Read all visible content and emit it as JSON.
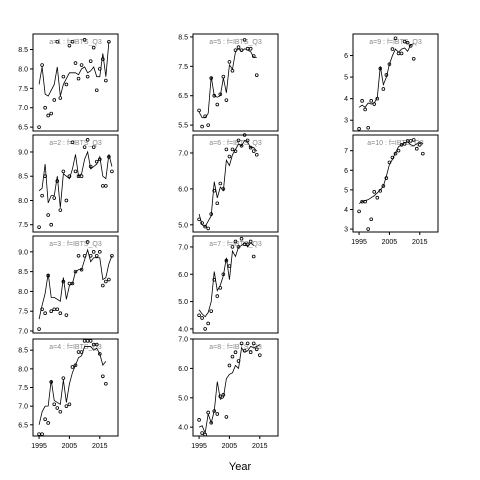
{
  "figure": {
    "xlabel": "Year",
    "xlim": [
      1993,
      2021
    ],
    "xticks": [
      1995,
      2005,
      2015
    ],
    "colors": {
      "line": "#000000",
      "points": "#000000",
      "panel_label": "#888888",
      "frame": "#000000"
    }
  },
  "chart_data": [
    {
      "type": "line",
      "panel": "a=1",
      "title": "a=1 : f=IBTS_Q3",
      "ylim": [
        6.4,
        8.9
      ],
      "yticks": [
        "6.5",
        "7.0",
        "7.5",
        "8.0",
        "8.5"
      ],
      "x": [
        1995,
        1996,
        1997,
        1998,
        1999,
        2000,
        2001,
        2002,
        2003,
        2004,
        2005,
        2006,
        2007,
        2008,
        2009,
        2010,
        2011,
        2012,
        2013,
        2014,
        2015,
        2016,
        2017,
        2018,
        2019,
        2020
      ],
      "series": [
        {
          "kind": "points",
          "values": [
            6.5,
            8.1,
            7.0,
            6.8,
            6.85,
            7.2,
            8.7,
            7.25,
            7.8,
            7.6,
            8.6,
            8.7,
            8.15,
            7.75,
            8.1,
            8.75,
            7.8,
            8.2,
            8.55,
            7.45,
            8.0,
            8.25,
            7.7,
            8.7,
            null,
            null
          ]
        },
        {
          "kind": "fitted",
          "values": [
            7.6,
            8.05,
            7.35,
            7.3,
            7.45,
            7.6,
            8.05,
            7.3,
            7.6,
            7.75,
            7.9,
            7.9,
            7.9,
            7.85,
            8.0,
            8.05,
            7.9,
            7.95,
            8.05,
            7.8,
            7.8,
            8.4,
            7.8,
            8.7,
            null,
            null
          ]
        }
      ]
    },
    {
      "type": "line",
      "panel": "a=2",
      "title": "a=2 : f=IBTS_Q3",
      "ylim": [
        7.35,
        9.35
      ],
      "yticks": [
        "7.5",
        "8.0",
        "8.5",
        "9.0"
      ],
      "x": [
        1995,
        1996,
        1997,
        1998,
        1999,
        2000,
        2001,
        2002,
        2003,
        2004,
        2005,
        2006,
        2007,
        2008,
        2009,
        2010,
        2011,
        2012,
        2013,
        2014,
        2015,
        2016,
        2017,
        2018,
        2019,
        2020
      ],
      "series": [
        {
          "kind": "points",
          "values": [
            7.45,
            8.1,
            8.5,
            7.7,
            7.5,
            8.05,
            8.4,
            7.8,
            8.6,
            8.0,
            8.5,
            9.2,
            8.6,
            8.5,
            8.5,
            9.1,
            9.25,
            8.7,
            9.1,
            8.8,
            8.85,
            8.3,
            8.3,
            8.9,
            8.6,
            null
          ]
        },
        {
          "kind": "fitted",
          "values": [
            8.2,
            8.25,
            8.75,
            7.95,
            8.1,
            8.1,
            8.5,
            7.85,
            8.55,
            8.5,
            8.45,
            8.65,
            8.95,
            8.5,
            8.55,
            8.85,
            9.0,
            8.65,
            8.7,
            8.75,
            8.9,
            8.5,
            8.45,
            8.95,
            8.7,
            null
          ]
        }
      ]
    },
    {
      "type": "line",
      "panel": "a=3",
      "title": "a=3 : f=IBTS_Q3",
      "ylim": [
        6.95,
        9.4
      ],
      "yticks": [
        "7.0",
        "7.5",
        "8.0",
        "8.5",
        "9.0"
      ],
      "x": [
        1995,
        1996,
        1997,
        1998,
        1999,
        2000,
        2001,
        2002,
        2003,
        2004,
        2005,
        2006,
        2007,
        2008,
        2009,
        2010,
        2011,
        2012,
        2013,
        2014,
        2015,
        2016,
        2017,
        2018,
        2019,
        2020
      ],
      "series": [
        {
          "kind": "points",
          "values": [
            7.05,
            7.55,
            7.45,
            8.4,
            7.5,
            7.55,
            7.55,
            7.45,
            8.25,
            7.4,
            8.2,
            8.2,
            8.5,
            8.9,
            8.55,
            8.9,
            9.25,
            8.9,
            9.0,
            8.9,
            9.0,
            8.15,
            8.25,
            8.3,
            8.9,
            null
          ]
        },
        {
          "kind": "fitted",
          "values": [
            7.3,
            7.65,
            7.95,
            8.45,
            7.85,
            7.85,
            7.8,
            7.75,
            8.35,
            7.8,
            8.15,
            8.2,
            8.5,
            8.55,
            8.55,
            8.8,
            9.05,
            8.75,
            8.85,
            8.85,
            8.85,
            8.3,
            8.35,
            8.7,
            8.9,
            null
          ]
        }
      ]
    },
    {
      "type": "line",
      "panel": "a=4",
      "title": "a=4 : f=IBTS_Q3",
      "ylim": [
        6.2,
        8.8
      ],
      "yticks": [
        "6.5",
        "7.0",
        "7.5",
        "8.0",
        "8.5"
      ],
      "x": [
        1995,
        1996,
        1997,
        1998,
        1999,
        2000,
        2001,
        2002,
        2003,
        2004,
        2005,
        2006,
        2007,
        2008,
        2009,
        2010,
        2011,
        2012,
        2013,
        2014,
        2015,
        2016,
        2017,
        2018,
        2019,
        2020
      ],
      "series": [
        {
          "kind": "points",
          "values": [
            6.25,
            6.25,
            6.65,
            6.55,
            7.65,
            7.05,
            6.95,
            6.85,
            7.75,
            7.0,
            7.05,
            8.05,
            8.1,
            8.45,
            8.45,
            8.75,
            8.75,
            8.75,
            8.65,
            8.65,
            8.4,
            7.8,
            7.6,
            null,
            null,
            null
          ]
        },
        {
          "kind": "fitted",
          "values": [
            6.5,
            6.85,
            7.0,
            7.0,
            7.7,
            7.15,
            7.1,
            7.05,
            7.7,
            7.1,
            7.6,
            7.9,
            8.1,
            8.3,
            8.35,
            8.6,
            8.6,
            8.6,
            8.5,
            8.55,
            8.4,
            8.1,
            8.2,
            null,
            null,
            null
          ]
        }
      ]
    },
    {
      "type": "line",
      "panel": "a=5",
      "title": "a=5 : f=IBTS_Q3",
      "ylim": [
        5.3,
        8.6
      ],
      "yticks": [
        "5.5",
        "6.5",
        "7.5",
        "8.5"
      ],
      "x": [
        1995,
        1996,
        1997,
        1998,
        1999,
        2000,
        2001,
        2002,
        2003,
        2004,
        2005,
        2006,
        2007,
        2008,
        2009,
        2010,
        2011,
        2012,
        2013,
        2014,
        2015,
        2016,
        2017,
        2018,
        2019,
        2020
      ],
      "series": [
        {
          "kind": "points",
          "values": [
            6.0,
            5.45,
            5.8,
            5.5,
            7.1,
            6.5,
            6.2,
            6.55,
            7.15,
            6.35,
            7.65,
            7.35,
            8.05,
            8.15,
            8.05,
            8.4,
            8.1,
            8.1,
            7.85,
            7.2,
            null,
            null,
            null,
            null,
            null,
            null
          ]
        },
        {
          "kind": "fitted",
          "values": [
            5.95,
            5.75,
            5.75,
            5.9,
            7.15,
            6.5,
            6.45,
            6.5,
            7.1,
            6.6,
            7.55,
            7.4,
            8.0,
            8.1,
            8.0,
            8.1,
            8.05,
            8.0,
            7.8,
            7.8,
            null,
            null,
            null,
            null,
            null,
            null
          ]
        }
      ]
    },
    {
      "type": "line",
      "panel": "a=6",
      "title": "a=6 : f=IBTS_Q3",
      "ylim": [
        4.8,
        7.5
      ],
      "yticks": [
        "5.0",
        "6.0",
        "7.0"
      ],
      "x": [
        1995,
        1996,
        1997,
        1998,
        1999,
        2000,
        2001,
        2002,
        2003,
        2004,
        2005,
        2006,
        2007,
        2008,
        2009,
        2010,
        2011,
        2012,
        2013,
        2014,
        2015,
        2016,
        2017,
        2018,
        2019,
        2020
      ],
      "series": [
        {
          "kind": "points",
          "values": [
            5.15,
            5.05,
            4.95,
            4.9,
            5.3,
            5.95,
            5.6,
            6.15,
            6.0,
            7.1,
            6.9,
            7.1,
            7.05,
            7.35,
            7.2,
            7.5,
            7.35,
            7.15,
            7.05,
            6.95,
            null,
            null,
            null,
            null,
            null,
            null
          ]
        },
        {
          "kind": "fitted",
          "values": [
            5.3,
            5.0,
            4.95,
            5.1,
            5.25,
            6.2,
            5.75,
            6.05,
            5.95,
            6.8,
            6.65,
            6.95,
            7.1,
            7.25,
            7.2,
            7.35,
            7.3,
            7.15,
            7.15,
            7.05,
            null,
            null,
            null,
            null,
            null,
            null
          ]
        }
      ]
    },
    {
      "type": "line",
      "panel": "a=7",
      "title": "a=7 : f=IBTS_Q3",
      "ylim": [
        3.85,
        7.4
      ],
      "yticks": [
        "4.0",
        "5.0",
        "6.0",
        "7.0"
      ],
      "x": [
        1995,
        1996,
        1997,
        1998,
        1999,
        2000,
        2001,
        2002,
        2003,
        2004,
        2005,
        2006,
        2007,
        2008,
        2009,
        2010,
        2011,
        2012,
        2013,
        2014,
        2015,
        2016,
        2017,
        2018,
        2019,
        2020
      ],
      "series": [
        {
          "kind": "points",
          "values": [
            4.5,
            4.4,
            4.0,
            4.2,
            4.65,
            5.8,
            5.2,
            5.5,
            6.0,
            6.5,
            6.3,
            7.0,
            7.2,
            7.0,
            7.3,
            7.1,
            7.1,
            7.2,
            6.65,
            null,
            null,
            null,
            null,
            null,
            null,
            null
          ]
        },
        {
          "kind": "fitted",
          "values": [
            4.7,
            4.55,
            4.45,
            4.6,
            5.0,
            6.1,
            5.4,
            5.6,
            5.95,
            6.6,
            5.8,
            6.85,
            6.65,
            7.0,
            7.05,
            7.15,
            7.0,
            7.15,
            7.05,
            null,
            null,
            null,
            null,
            null,
            null,
            null
          ]
        }
      ]
    },
    {
      "type": "line",
      "panel": "a=8",
      "title": "a=8 : f=IBTS_Q3",
      "ylim": [
        3.7,
        7.0
      ],
      "yticks": [
        "4.0",
        "5.0",
        "6.0",
        "7.0"
      ],
      "x": [
        1995,
        1996,
        1997,
        1998,
        1999,
        2000,
        2001,
        2002,
        2003,
        2004,
        2005,
        2006,
        2007,
        2008,
        2009,
        2010,
        2011,
        2012,
        2013,
        2014,
        2015,
        2016,
        2017,
        2018,
        2019,
        2020
      ],
      "series": [
        {
          "kind": "points",
          "values": [
            4.25,
            3.8,
            3.75,
            4.5,
            4.15,
            4.55,
            4.45,
            5.05,
            5.1,
            4.35,
            6.1,
            6.4,
            6.55,
            6.25,
            6.85,
            6.6,
            6.85,
            6.55,
            6.85,
            6.65,
            6.45,
            null,
            null,
            null,
            null,
            null
          ]
        },
        {
          "kind": "fitted",
          "values": [
            4.0,
            4.05,
            3.8,
            4.45,
            4.15,
            4.55,
            5.55,
            4.95,
            5.0,
            5.65,
            5.8,
            5.85,
            6.1,
            6.0,
            6.7,
            6.55,
            6.6,
            6.75,
            6.7,
            6.75,
            6.8,
            null,
            null,
            null,
            null,
            null
          ]
        }
      ]
    },
    {
      "type": "line",
      "panel": "a=9",
      "title": "a=9 : f=IBTS_Q3",
      "ylim": [
        2.5,
        7.0
      ],
      "yticks": [
        "3",
        "4",
        "5",
        "6"
      ],
      "x": [
        1995,
        1996,
        1997,
        1998,
        1999,
        2000,
        2001,
        2002,
        2003,
        2004,
        2005,
        2006,
        2007,
        2008,
        2009,
        2010,
        2011,
        2012,
        2013,
        2014,
        2015,
        2016,
        2017,
        2018,
        2019,
        2020
      ],
      "series": [
        {
          "kind": "points",
          "values": [
            2.6,
            3.9,
            3.5,
            2.65,
            3.9,
            3.75,
            4.0,
            5.4,
            4.45,
            5.1,
            5.6,
            6.3,
            6.8,
            6.1,
            6.1,
            6.65,
            6.6,
            6.45,
            5.85,
            null,
            null,
            null,
            null,
            null,
            null,
            null
          ]
        },
        {
          "kind": "fitted",
          "values": [
            3.6,
            3.7,
            3.6,
            3.8,
            3.75,
            3.8,
            4.05,
            5.5,
            4.65,
            5.0,
            5.6,
            6.0,
            6.3,
            6.15,
            6.3,
            6.35,
            6.2,
            6.5,
            6.55,
            null,
            null,
            null,
            null,
            null,
            null,
            null
          ]
        }
      ]
    },
    {
      "type": "line",
      "panel": "a=10",
      "title": "a=10 : f=IBTS_Q3",
      "ylim": [
        2.85,
        7.8
      ],
      "yticks": [
        "3",
        "4",
        "5",
        "6",
        "7"
      ],
      "x": [
        1995,
        1996,
        1997,
        1998,
        1999,
        2000,
        2001,
        2002,
        2003,
        2004,
        2005,
        2006,
        2007,
        2008,
        2009,
        2010,
        2011,
        2012,
        2013,
        2014,
        2015,
        2016,
        2017,
        2018,
        2019,
        2020
      ],
      "series": [
        {
          "kind": "points",
          "values": [
            3.9,
            4.4,
            4.4,
            3.0,
            3.5,
            4.9,
            4.6,
            4.95,
            5.2,
            5.6,
            6.4,
            6.65,
            6.85,
            7.0,
            7.3,
            7.35,
            7.5,
            7.5,
            7.55,
            7.1,
            7.3,
            6.85,
            null,
            null,
            null,
            null
          ]
        },
        {
          "kind": "fitted",
          "values": [
            4.3,
            4.4,
            4.45,
            4.5,
            4.6,
            4.7,
            4.85,
            5.0,
            5.2,
            5.7,
            6.3,
            6.55,
            6.9,
            7.2,
            7.3,
            7.4,
            7.45,
            7.3,
            7.25,
            7.35,
            7.45,
            7.35,
            null,
            null,
            null,
            null
          ]
        }
      ]
    }
  ]
}
